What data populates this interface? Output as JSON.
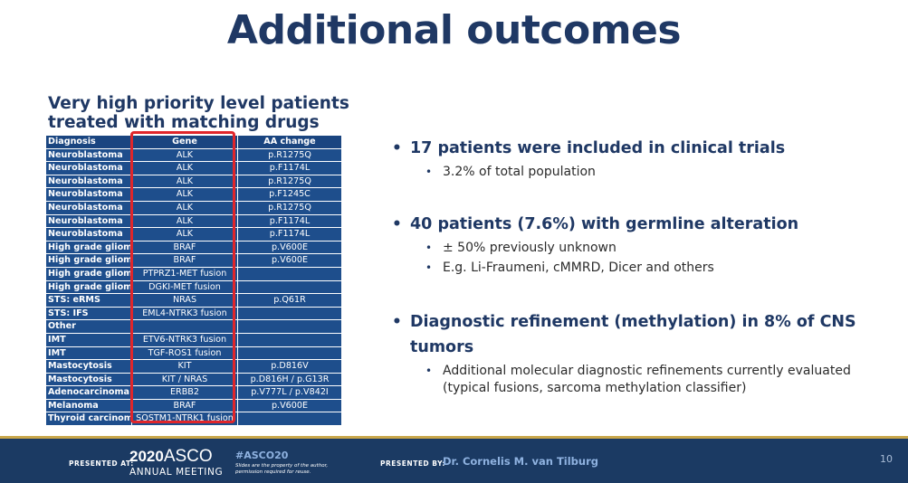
{
  "slide": {
    "title": "Additional outcomes",
    "table_heading": "Very high priority level patients treated with matching drugs"
  },
  "table": {
    "headers": [
      "Diagnosis",
      "Gene",
      "AA change"
    ],
    "rows": [
      [
        "Neuroblastoma",
        "ALK",
        "p.R1275Q"
      ],
      [
        "Neuroblastoma",
        "ALK",
        "p.F1174L"
      ],
      [
        "Neuroblastoma",
        "ALK",
        "p.R1275Q"
      ],
      [
        "Neuroblastoma",
        "ALK",
        "p.F1245C"
      ],
      [
        "Neuroblastoma",
        "ALK",
        "p.R1275Q"
      ],
      [
        "Neuroblastoma",
        "ALK",
        "p.F1174L"
      ],
      [
        "Neuroblastoma",
        "ALK",
        "p.F1174L"
      ],
      [
        "High grade glioma",
        "BRAF",
        "p.V600E"
      ],
      [
        "High grade glioma",
        "BRAF",
        "p.V600E"
      ],
      [
        "High grade glioma",
        "PTPRZ1-MET fusion",
        ""
      ],
      [
        "High grade glioma",
        "DGKI-MET fusion",
        ""
      ],
      [
        "STS: eRMS",
        "NRAS",
        "p.Q61R"
      ],
      [
        "STS: IFS",
        "EML4-NTRK3 fusion",
        ""
      ],
      [
        "Other",
        "",
        ""
      ],
      [
        "IMT",
        "ETV6-NTRK3 fusion",
        ""
      ],
      [
        "IMT",
        "TGF-ROS1 fusion",
        ""
      ],
      [
        "Mastocytosis",
        "KIT",
        "p.D816V"
      ],
      [
        "Mastocytosis",
        "KIT / NRAS",
        "p.D816H / p.G13R"
      ],
      [
        "Adenocarcinoma",
        "ERBB2",
        "p.V777L / p.V842I"
      ],
      [
        "Melanoma",
        "BRAF",
        "p.V600E"
      ],
      [
        "Thyroid carcinoma",
        "SQSTM1-NTRK1 fusion",
        ""
      ]
    ]
  },
  "bullets": [
    {
      "text": "17 patients were included in clinical trials",
      "subs": [
        "3.2% of total population"
      ]
    },
    {
      "text": "40 patients (7.6%) with germline alteration",
      "subs": [
        "± 50% previously unknown",
        "E.g. Li-Fraumeni, cMMRD, Dicer and others"
      ]
    },
    {
      "text": "Diagnostic refinement (methylation) in 8% of CNS tumors",
      "subs": [
        "Additional molecular diagnostic refinements currently evaluated (typical fusions, sarcoma methylation classifier)"
      ]
    }
  ],
  "footer": {
    "presented_at": "PRESENTED AT:",
    "year": "2020",
    "asco": "ASCO",
    "annual_meeting": "ANNUAL MEETING",
    "hashtag": "#ASCO20",
    "disclaimer_1": "Slides are the property of the author,",
    "disclaimer_2": "permission required for reuse.",
    "presented_by": "PRESENTED BY:",
    "presenter": "Dr. Cornelis M. van Tilburg",
    "page_number": "10"
  },
  "colors": {
    "title": "#1f3864",
    "table_fill": "#1e4e8c",
    "highlight": "#e0262b",
    "footer_bg": "#1b3a63",
    "footer_accent": "#c9a74b"
  }
}
